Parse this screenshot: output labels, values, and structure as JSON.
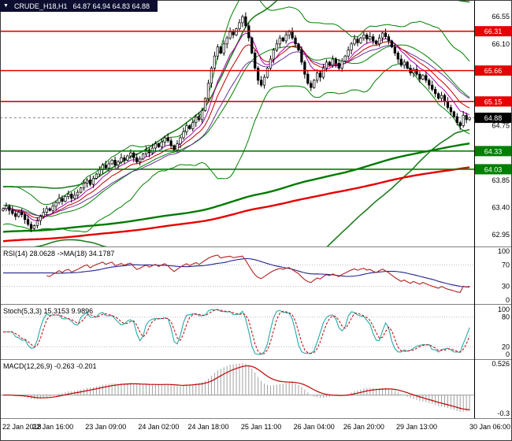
{
  "header": {
    "symbol": "CRUDE_H18,H1",
    "ohlc": "64.87 64.94 64.83 64.88",
    "dropdown_icon": "▼"
  },
  "colors": {
    "background": "#ffffff",
    "window_border": "#3a3a3a",
    "separator": "#808080",
    "axis_line": "#000000",
    "axis_text": "#000000",
    "candle": "#000000",
    "candle_up_fill": "#ffffff",
    "candle_down_fill": "#000000",
    "bollinger": "#008000",
    "bollinger_wide": "#1e7d1e",
    "ma_fast_magenta": "#b000b0",
    "ma_fast_red": "#c00000",
    "ma_fast_purple": "#7030a0",
    "ma_slow_green": "#007a00",
    "ma_slow_red": "#e60000",
    "level_red": "#e60000",
    "level_green": "#008000",
    "current_price": "#000000",
    "current_price_line": "#888888",
    "rsi_line": "#b22222",
    "rsi_ma_line": "#24248f",
    "stoch_main": "#2ca8a8",
    "stoch_signal": "#c00000",
    "macd_hist": "#a0a0a0",
    "macd_signal": "#c00000",
    "indicator_level": "#b8b8cc",
    "titlebar_bg": "#0d0d30",
    "titlebar_text": "#ffffff"
  },
  "chart_data": {
    "type": "candlestick",
    "title": "CRUDE_H18,H1",
    "timeframe": "H1",
    "x_labels": [
      "22 Jan 2018",
      "22 Jan 16:00",
      "23 Jan 09:00",
      "24 Jan 02:00",
      "24 Jan 18:00",
      "25 Jan 11:00",
      "26 Jan 04:00",
      "26 Jan 20:00",
      "29 Jan 13:00",
      "30 Jan 06:00"
    ],
    "x_label_bar_index": [
      0,
      16,
      33,
      50,
      66,
      83,
      100,
      116,
      133,
      150
    ],
    "y_range": [
      62.78,
      66.8
    ],
    "y_ticks": [
      66.55,
      66.1,
      64.75,
      63.85,
      63.4,
      62.95
    ],
    "levels": [
      {
        "value": 66.31,
        "label": "66.31",
        "color": "#e60000",
        "style": "solid"
      },
      {
        "value": 65.66,
        "label": "65.66",
        "color": "#e60000",
        "style": "solid"
      },
      {
        "value": 65.15,
        "label": "65.15",
        "color": "#e60000",
        "style": "solid"
      },
      {
        "value": 64.88,
        "label": "64.88",
        "color": "#000000",
        "style": "current"
      },
      {
        "value": 64.33,
        "label": "64.33",
        "color": "#008000",
        "style": "solid"
      },
      {
        "value": 64.03,
        "label": "64.03",
        "color": "#008000",
        "style": "solid"
      }
    ],
    "closes": [
      63.38,
      63.42,
      63.35,
      63.3,
      63.25,
      63.32,
      63.28,
      63.2,
      63.12,
      63.05,
      63.1,
      63.18,
      63.25,
      63.32,
      63.38,
      63.35,
      63.42,
      63.48,
      63.55,
      63.5,
      63.58,
      63.62,
      63.55,
      63.6,
      63.65,
      63.72,
      63.8,
      63.85,
      63.78,
      63.88,
      63.95,
      64.02,
      64.1,
      64.05,
      64.12,
      64.18,
      64.1,
      64.15,
      64.22,
      64.18,
      64.25,
      64.3,
      64.22,
      64.15,
      64.2,
      64.28,
      64.35,
      64.3,
      64.38,
      64.45,
      64.4,
      64.48,
      64.55,
      64.5,
      64.42,
      64.35,
      64.45,
      64.55,
      64.65,
      64.75,
      64.7,
      64.8,
      64.9,
      64.85,
      65.0,
      65.2,
      65.45,
      65.7,
      65.9,
      66.05,
      65.95,
      66.1,
      66.2,
      66.3,
      66.25,
      66.35,
      66.45,
      66.55,
      66.4,
      66.2,
      65.95,
      65.7,
      65.5,
      65.42,
      65.55,
      65.7,
      65.85,
      66.0,
      66.1,
      66.2,
      66.15,
      66.25,
      66.3,
      66.2,
      66.1,
      66.0,
      65.8,
      65.6,
      65.45,
      65.38,
      65.5,
      65.62,
      65.55,
      65.7,
      65.8,
      65.75,
      65.85,
      65.78,
      65.7,
      65.82,
      65.9,
      66.0,
      66.1,
      66.18,
      66.12,
      66.2,
      66.25,
      66.18,
      66.22,
      66.15,
      66.1,
      66.2,
      66.28,
      66.22,
      66.15,
      66.05,
      65.95,
      65.85,
      65.75,
      65.8,
      65.7,
      65.62,
      65.68,
      65.6,
      65.52,
      65.58,
      65.5,
      65.42,
      65.35,
      65.28,
      65.2,
      65.25,
      65.15,
      65.05,
      64.98,
      64.9,
      64.8,
      64.75,
      64.92,
      64.85,
      64.88
    ],
    "indicators": {
      "rsi": {
        "label": "RSI(14) 28.0628 ->MA(18) 34.1787",
        "period": 14,
        "value": 28.0628,
        "ma_period": 18,
        "ma_value": 34.1787,
        "ticks": [
          100,
          70,
          30,
          0
        ],
        "level_lines": [
          70,
          30
        ]
      },
      "stoch": {
        "label": "Stoch(5,3,3) 15.3153 9.9896",
        "main_value": 15.3153,
        "signal_value": 9.9896,
        "ticks": [
          100,
          80,
          20,
          0
        ],
        "level_lines": [
          80,
          20
        ]
      },
      "macd": {
        "label": "MACD(12,26,9) -0.263 -0.201",
        "main_value": -0.263,
        "signal_value": -0.201,
        "ticks": [
          0.526,
          -0.3
        ],
        "y_range": [
          -0.35,
          0.55
        ]
      }
    }
  }
}
